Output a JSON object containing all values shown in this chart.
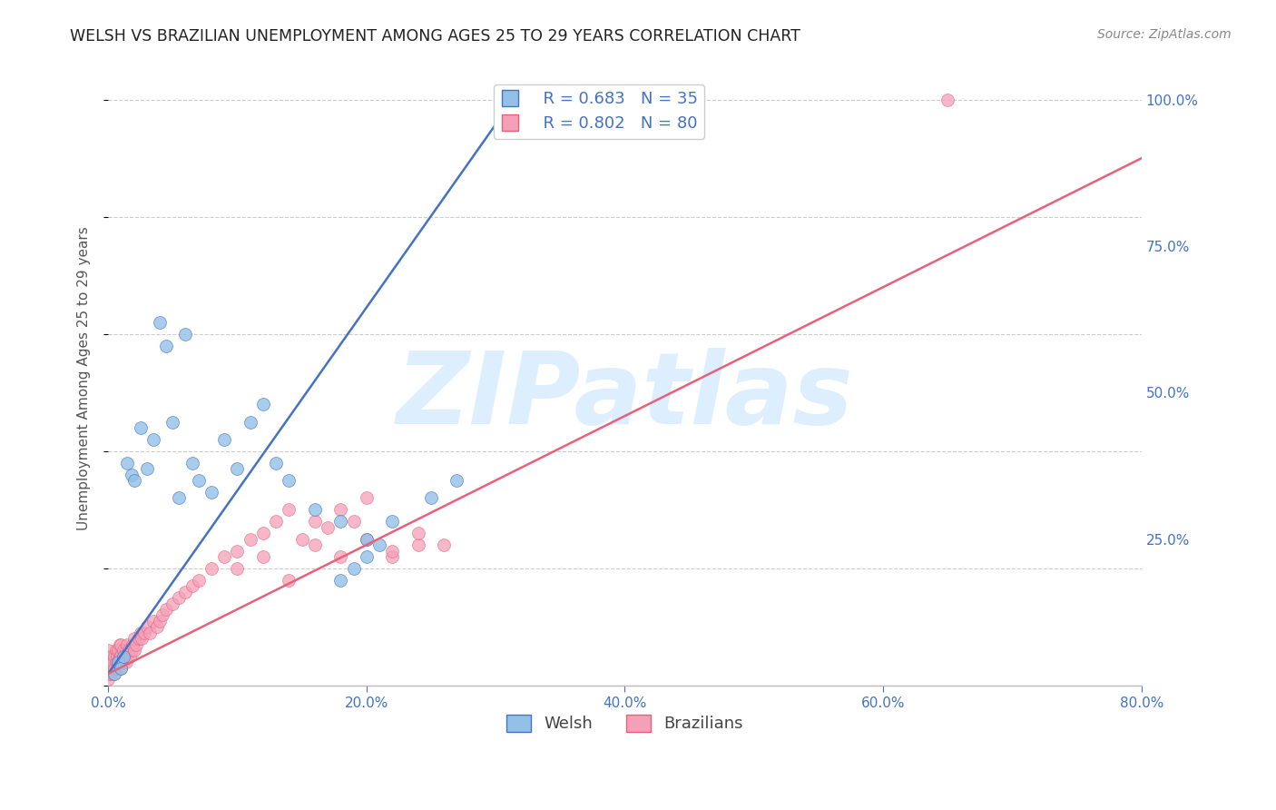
{
  "title": "WELSH VS BRAZILIAN UNEMPLOYMENT AMONG AGES 25 TO 29 YEARS CORRELATION CHART",
  "source_text": "Source: ZipAtlas.com",
  "ylabel": "Unemployment Among Ages 25 to 29 years",
  "welsh_label": "Welsh",
  "brazilian_label": "Brazilians",
  "welsh_R": 0.683,
  "welsh_N": 35,
  "brazilian_R": 0.802,
  "brazilian_N": 80,
  "xmin": 0.0,
  "xmax": 0.8,
  "ymin": 0.0,
  "ymax": 1.05,
  "yticks": [
    0.0,
    0.25,
    0.5,
    0.75,
    1.0
  ],
  "ytick_labels": [
    "",
    "25.0%",
    "50.0%",
    "75.0%",
    "100.0%"
  ],
  "xticks": [
    0.0,
    0.2,
    0.4,
    0.6,
    0.8
  ],
  "xtick_labels": [
    "0.0%",
    "20.0%",
    "40.0%",
    "60.0%",
    "80.0%"
  ],
  "welsh_color": "#92c0e8",
  "welsh_line_color": "#4472c4",
  "brazilian_color": "#f4a0b8",
  "brazilian_line_color": "#e8607a",
  "background_color": "#ffffff",
  "grid_color": "#cccccc",
  "axis_label_color": "#4472c4",
  "title_color": "#222222",
  "watermark_color": "#ddeeff",
  "welsh_scatter_x": [
    0.005,
    0.008,
    0.01,
    0.012,
    0.015,
    0.018,
    0.02,
    0.025,
    0.03,
    0.035,
    0.04,
    0.045,
    0.05,
    0.055,
    0.06,
    0.065,
    0.07,
    0.08,
    0.09,
    0.1,
    0.11,
    0.12,
    0.13,
    0.14,
    0.16,
    0.18,
    0.2,
    0.22,
    0.25,
    0.27,
    0.18,
    0.19,
    0.2,
    0.21,
    0.35
  ],
  "welsh_scatter_y": [
    0.02,
    0.04,
    0.03,
    0.05,
    0.38,
    0.36,
    0.35,
    0.44,
    0.37,
    0.42,
    0.62,
    0.58,
    0.45,
    0.32,
    0.6,
    0.38,
    0.35,
    0.33,
    0.42,
    0.37,
    0.45,
    0.48,
    0.38,
    0.35,
    0.3,
    0.28,
    0.25,
    0.28,
    0.32,
    0.35,
    0.18,
    0.2,
    0.22,
    0.24,
    1.0
  ],
  "brazilian_scatter_x": [
    0.0,
    0.0,
    0.0,
    0.0,
    0.0,
    0.0,
    0.002,
    0.002,
    0.003,
    0.003,
    0.004,
    0.004,
    0.005,
    0.005,
    0.006,
    0.006,
    0.007,
    0.007,
    0.008,
    0.008,
    0.009,
    0.009,
    0.01,
    0.01,
    0.01,
    0.012,
    0.012,
    0.013,
    0.014,
    0.014,
    0.015,
    0.015,
    0.016,
    0.017,
    0.018,
    0.019,
    0.02,
    0.02,
    0.022,
    0.024,
    0.025,
    0.026,
    0.028,
    0.03,
    0.032,
    0.035,
    0.038,
    0.04,
    0.042,
    0.045,
    0.05,
    0.055,
    0.06,
    0.065,
    0.07,
    0.08,
    0.09,
    0.1,
    0.11,
    0.12,
    0.13,
    0.14,
    0.15,
    0.16,
    0.17,
    0.18,
    0.19,
    0.2,
    0.22,
    0.24,
    0.1,
    0.12,
    0.14,
    0.16,
    0.18,
    0.2,
    0.22,
    0.24,
    0.26,
    0.65
  ],
  "brazilian_scatter_y": [
    0.01,
    0.02,
    0.03,
    0.04,
    0.05,
    0.06,
    0.02,
    0.04,
    0.03,
    0.05,
    0.02,
    0.04,
    0.03,
    0.05,
    0.04,
    0.06,
    0.03,
    0.05,
    0.04,
    0.06,
    0.05,
    0.07,
    0.03,
    0.05,
    0.07,
    0.04,
    0.06,
    0.05,
    0.04,
    0.06,
    0.05,
    0.07,
    0.06,
    0.05,
    0.06,
    0.07,
    0.06,
    0.08,
    0.07,
    0.08,
    0.09,
    0.08,
    0.09,
    0.1,
    0.09,
    0.11,
    0.1,
    0.11,
    0.12,
    0.13,
    0.14,
    0.15,
    0.16,
    0.17,
    0.18,
    0.2,
    0.22,
    0.23,
    0.25,
    0.26,
    0.28,
    0.3,
    0.25,
    0.28,
    0.27,
    0.3,
    0.28,
    0.32,
    0.22,
    0.24,
    0.2,
    0.22,
    0.18,
    0.24,
    0.22,
    0.25,
    0.23,
    0.26,
    0.24,
    1.0
  ],
  "welsh_trend_x": [
    0.0,
    0.32
  ],
  "welsh_trend_y": [
    0.02,
    1.02
  ],
  "brazilian_trend_x": [
    0.0,
    0.8
  ],
  "brazilian_trend_y": [
    0.02,
    0.9
  ]
}
